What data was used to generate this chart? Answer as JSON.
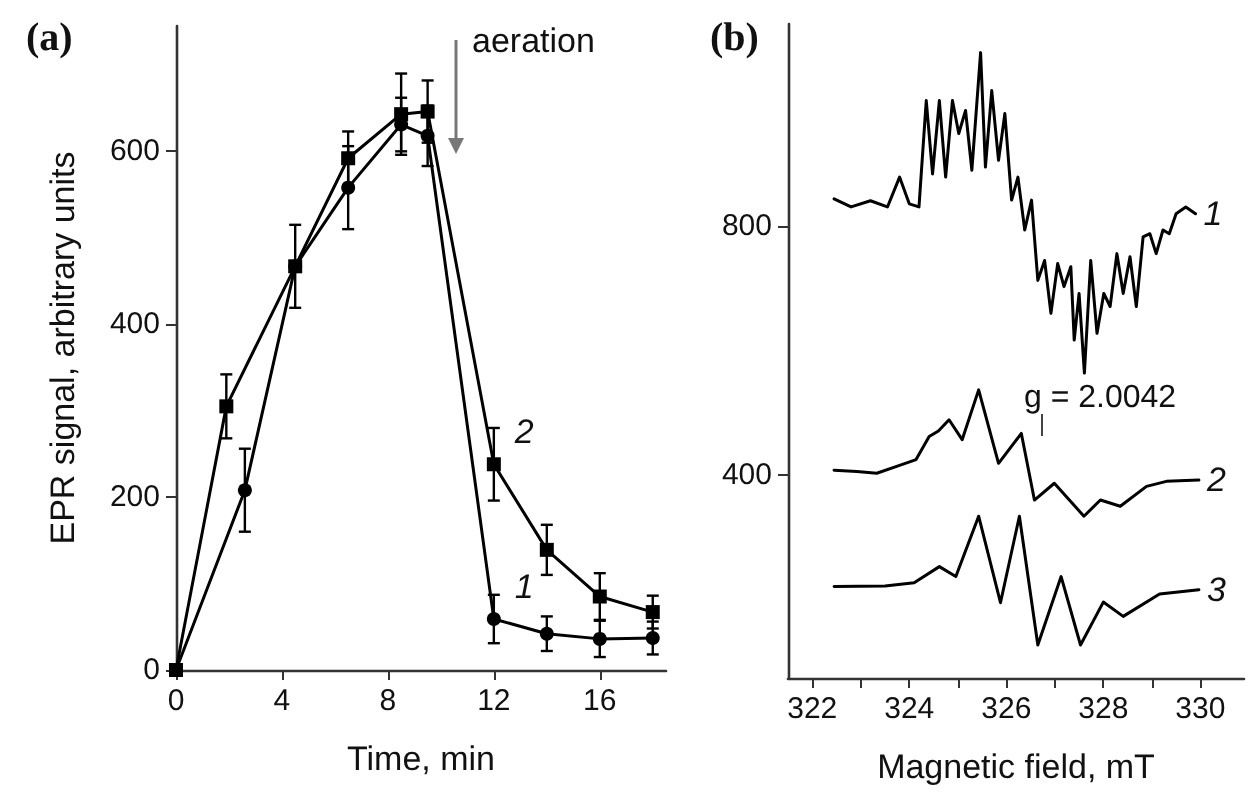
{
  "chart_data": [
    {
      "type": "line",
      "title": "(a)",
      "xlabel": "Time, min",
      "ylabel": "EPR signal, arbitrary units",
      "xlim": [
        0,
        18.5
      ],
      "ylim": [
        0,
        745
      ],
      "xticks": [
        0,
        4,
        8,
        12,
        16
      ],
      "yticks": [
        0,
        200,
        400,
        600
      ],
      "series": [
        {
          "name": "2",
          "color": "#000000",
          "marker": "square",
          "x": [
            0,
            1.9,
            4.5,
            6.5,
            8.5,
            9.5,
            12,
            14,
            16,
            18
          ],
          "values": [
            0,
            305,
            467,
            592,
            643,
            646,
            238,
            139,
            85,
            67
          ],
          "errors": [
            null,
            37,
            48,
            31,
            47,
            36,
            42,
            29,
            27,
            19
          ]
        },
        {
          "name": "1",
          "color": "#000000",
          "marker": "circle",
          "x": [
            0,
            2.6,
            4.5,
            6.5,
            8.5,
            9.5,
            12,
            14,
            16,
            18
          ],
          "values": [
            0,
            208,
            467,
            558,
            631,
            618,
            59,
            42,
            36,
            37
          ],
          "errors": [
            null,
            48,
            null,
            48,
            31,
            35,
            28,
            20,
            21,
            19
          ]
        }
      ],
      "annotations": [
        "aeration"
      ]
    },
    {
      "type": "line",
      "title": "(b)",
      "xlabel": "Magnetic field, mT",
      "xlim": [
        321.5,
        330.9
      ],
      "ylim": [
        73,
        1124
      ],
      "xticks": [
        322,
        {
          "value": 323,
          "label": null
        },
        324,
        {
          "value": 325,
          "label": null
        },
        326,
        {
          "value": 327,
          "label": null
        },
        328,
        {
          "value": 329,
          "label": null
        },
        330
      ],
      "yticks": [
        400,
        800
      ],
      "series": [
        {
          "name": "1",
          "color": "#000000",
          "marker": "none",
          "x": [
            322.45,
            322.8,
            323.2,
            323.55,
            323.8,
            324.0,
            324.2,
            324.35,
            324.48,
            324.62,
            324.75,
            324.89,
            325.02,
            325.16,
            325.29,
            325.47,
            325.57,
            325.7,
            325.84,
            325.97,
            326.11,
            326.24,
            326.38,
            326.52,
            326.65,
            326.79,
            326.92,
            327.06,
            327.19,
            327.33,
            327.4,
            327.5,
            327.61,
            327.74,
            327.87,
            328.01,
            328.14,
            328.28,
            328.41,
            328.55,
            328.68,
            328.82,
            328.96,
            329.09,
            329.23,
            329.36,
            329.5,
            329.7,
            329.9
          ],
          "values": [
            843,
            830,
            840,
            830,
            878,
            835,
            830,
            1001,
            883,
            1001,
            878,
            1001,
            948,
            985,
            889,
            1078,
            894,
            1017,
            905,
            980,
            841,
            878,
            793,
            841,
            712,
            744,
            659,
            739,
            702,
            734,
            616,
            691,
            563,
            744,
            627,
            691,
            670,
            755,
            691,
            750,
            670,
            782,
            787,
            755,
            793,
            787,
            819,
            830,
            819
          ]
        },
        {
          "name": "2",
          "color": "#000000",
          "marker": "none",
          "x": [
            322.45,
            322.92,
            323.33,
            323.74,
            324.14,
            324.41,
            324.6,
            324.82,
            325.09,
            325.43,
            325.84,
            326.31,
            326.58,
            326.99,
            327.6,
            327.94,
            328.35,
            328.89,
            329.3,
            329.97
          ],
          "values": [
            407,
            405,
            402,
            413,
            424,
            461,
            470,
            488,
            456,
            536,
            418,
            466,
            359,
            386,
            333,
            359,
            349,
            381,
            389,
            391
          ]
        },
        {
          "name": "3",
          "color": "#000000",
          "marker": "none",
          "x": [
            322.45,
            323.5,
            324.1,
            324.62,
            324.96,
            325.43,
            325.88,
            326.27,
            326.65,
            327.13,
            327.53,
            328.0,
            328.41,
            329.16,
            329.97
          ],
          "values": [
            220,
            221,
            226,
            252,
            236,
            333,
            194,
            333,
            126,
            236,
            126,
            195,
            172,
            208,
            215
          ]
        }
      ],
      "annotations": [
        "g = 2.0042"
      ]
    }
  ]
}
